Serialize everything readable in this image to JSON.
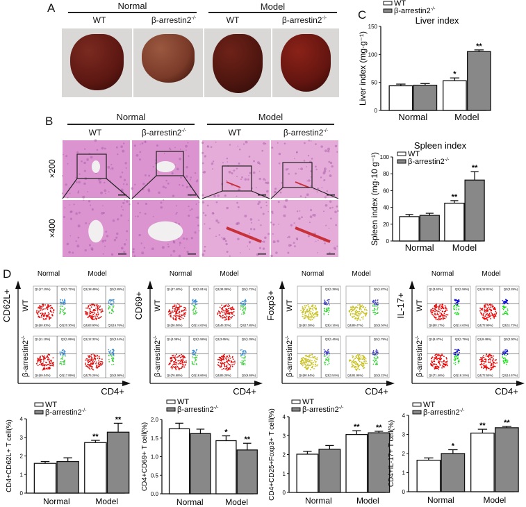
{
  "panel_labels": {
    "a": "A",
    "b": "B",
    "c": "C",
    "d": "D"
  },
  "groups": {
    "normal": "Normal",
    "model": "Model"
  },
  "genotypes": {
    "wt": "WT",
    "ko": "β-arrestin2",
    "ko_sup": "-/-"
  },
  "magnification": {
    "low": "×200",
    "high": "×400"
  },
  "colors": {
    "wt_bar": "#ffffff",
    "ko_bar": "#888888",
    "liver": "#6e1a14",
    "he_stain": "#e7a6d6"
  },
  "flow": {
    "x_axis": "CD4+",
    "panels": [
      {
        "marker": "CD62L+",
        "x_label": "CD4+",
        "plots": [
          {
            "q1": "Q1(17.15%)",
            "q2": "Q2(1.72%)",
            "q4": "Q4(60.83%)",
            "q3": "Q3(20.30%)"
          },
          {
            "q1": "Q1(18.49%)",
            "q2": "Q2(2.85%)",
            "q4": "Q4(63.90%)",
            "q3": "Q3(16.76%)"
          },
          {
            "q1": "Q1(11.10%)",
            "q2": "Q2(1.89%)",
            "q4": "Q4(69.04%)",
            "q3": "Q3(17.89%)"
          },
          {
            "q1": "Q1(12.32%)",
            "q2": "Q2(3.44%)",
            "q4": "Q4(75.26%)",
            "q3": "Q3(8.98%)"
          }
        ]
      },
      {
        "marker": "CD69+",
        "x_label": "CD4+",
        "plots": [
          {
            "q1": "Q1(47.40%)",
            "q2": "Q2(1.81%)",
            "q4": "Q4(36.06%)",
            "q3": "Q3(14.62%)"
          },
          {
            "q1": "Q1(34.08%)",
            "q2": "Q2(1.72%)",
            "q4": "Q4(46.33%)",
            "q3": "Q3(17.85%)"
          },
          {
            "q1": "Q1(4.08%)",
            "q2": "Q2(1.58%)",
            "q4": "Q4(76.68%)",
            "q3": "Q3(18.66%)"
          },
          {
            "q1": "Q1(3.65%)",
            "q2": "Q2(1.39%)",
            "q4": "Q4(85.28%)",
            "q3": "Q3(9.69%)"
          }
        ]
      },
      {
        "marker": "Foxp3+",
        "x_label": "CD4+",
        "plots": [
          {
            "q1": "",
            "q2": "Q2(1.38%)",
            "q4": "Q4(92.28%)",
            "q3": "Q3(4.16%)"
          },
          {
            "q1": "",
            "q2": "Q2(1.87%)",
            "q4": "Q4(89.47%)",
            "q3": "Q3(5.04%)"
          },
          {
            "q1": "",
            "q2": "Q2(1.46%)",
            "q4": "Q4(90.94%)",
            "q3": "Q3(3.54%)"
          },
          {
            "q1": "",
            "q2": "Q2(1.79%)",
            "q4": "Q4(91.96%)",
            "q3": "Q3(5.22%)"
          }
        ]
      },
      {
        "marker": "IL-17+",
        "x_label": "CD4+",
        "plots": [
          {
            "q1": "Q1(3.62%)",
            "q2": "Q2(1.58%)",
            "q4": "Q4(80.17%)",
            "q3": "Q3(14.63%)"
          },
          {
            "q1": "Q1(12.01%)",
            "q2": "Q2(3.28%)",
            "q4": "Q4(72.99%)",
            "q3": "Q3(11.72%)"
          },
          {
            "q1": "Q1(8.47%)",
            "q2": "Q2(1.79%)",
            "q4": "Q4(71.46%)",
            "q3": "Q3(18.34%)"
          },
          {
            "q1": "Q1(9.48%)",
            "q2": "Q2(3.30%)",
            "q4": "Q4(72.55%)",
            "q3": "Q3(14.67%)"
          }
        ]
      }
    ]
  },
  "chart_data": [
    {
      "type": "bar",
      "title": "Liver index",
      "ylabel": "Liver index (mg·g⁻¹)",
      "categories": [
        "Normal",
        "Model"
      ],
      "ylim": [
        0,
        150
      ],
      "yticks": [
        0,
        50,
        100,
        150
      ],
      "series": [
        {
          "name": "WT",
          "values": [
            44,
            53
          ],
          "errors": [
            3,
            5
          ]
        },
        {
          "name": "β-arrestin2-/-",
          "values": [
            45,
            105
          ],
          "errors": [
            3,
            3
          ]
        }
      ],
      "annotations": {
        "wt": [
          "",
          "*"
        ],
        "ko": [
          "",
          "**"
        ],
        "bracket": "##"
      },
      "legend": "top-left"
    },
    {
      "type": "bar",
      "title": "Spleen index",
      "ylabel": "Spleen index (mg·10 g⁻¹)",
      "categories": [
        "Normal",
        "Model"
      ],
      "ylim": [
        0,
        100
      ],
      "yticks": [
        0,
        20,
        40,
        60,
        80,
        100
      ],
      "series": [
        {
          "name": "WT",
          "values": [
            29,
            45
          ],
          "errors": [
            2.5,
            3
          ]
        },
        {
          "name": "β-arrestin2-/-",
          "values": [
            30.5,
            72.5
          ],
          "errors": [
            2.5,
            10
          ]
        }
      ],
      "annotations": {
        "wt": [
          "",
          "**"
        ],
        "ko": [
          "",
          "**"
        ],
        "bracket": "##"
      },
      "legend": "top-left"
    },
    {
      "type": "bar",
      "title": "",
      "ylabel": "CD4+CD62L+ T cell(%)",
      "categories": [
        "Normal",
        "Model"
      ],
      "ylim": [
        0,
        4
      ],
      "yticks": [
        0,
        1,
        2,
        3,
        4
      ],
      "series": [
        {
          "name": "WT",
          "values": [
            1.6,
            2.72
          ],
          "errors": [
            0.1,
            0.12
          ]
        },
        {
          "name": "β-arrestin2-/-",
          "values": [
            1.7,
            3.28
          ],
          "errors": [
            0.2,
            0.48
          ]
        }
      ],
      "annotations": {
        "wt": [
          "",
          "**"
        ],
        "ko": [
          "",
          "**"
        ],
        "bracket": "#"
      },
      "legend": "top-left"
    },
    {
      "type": "bar",
      "title": "",
      "ylabel": "CD4+CD69+ T cell(%)",
      "categories": [
        "Normal",
        "Model"
      ],
      "ylim": [
        0,
        2
      ],
      "yticks": [
        "0.0",
        "0.5",
        "1.0",
        "1.5",
        "2.0"
      ],
      "series": [
        {
          "name": "WT",
          "values": [
            1.75,
            1.43
          ],
          "errors": [
            0.15,
            0.13
          ]
        },
        {
          "name": "β-arrestin2-/-",
          "values": [
            1.62,
            1.18
          ],
          "errors": [
            0.12,
            0.18
          ]
        }
      ],
      "annotations": {
        "wt": [
          "",
          "*"
        ],
        "ko": [
          "",
          "**"
        ],
        "bracket": "#"
      },
      "legend": "top-left"
    },
    {
      "type": "bar",
      "title": "",
      "ylabel": "CD4+CD25+Foxp3+ T cell(%)",
      "categories": [
        "Normal",
        "Model"
      ],
      "ylim": [
        0,
        4
      ],
      "yticks": [
        0,
        1,
        2,
        3,
        4
      ],
      "series": [
        {
          "name": "WT",
          "values": [
            2.02,
            3.06
          ],
          "errors": [
            0.15,
            0.2
          ]
        },
        {
          "name": "β-arrestin2-/-",
          "values": [
            2.28,
            3.15
          ],
          "errors": [
            0.2,
            0.08
          ]
        }
      ],
      "annotations": {
        "wt": [
          "",
          "**"
        ],
        "ko": [
          "",
          "**"
        ],
        "bracket": ""
      },
      "legend": "top-left"
    },
    {
      "type": "bar",
      "title": "",
      "ylabel": "CD4+IL-17+ T cell(%)",
      "categories": [
        "Normal",
        "Model"
      ],
      "ylim": [
        0,
        4
      ],
      "yticks": [
        0,
        1,
        2,
        3,
        4
      ],
      "series": [
        {
          "name": "WT",
          "values": [
            1.65,
            3.07
          ],
          "errors": [
            0.12,
            0.2
          ]
        },
        {
          "name": "β-arrestin2-/-",
          "values": [
            2.0,
            3.35
          ],
          "errors": [
            0.2,
            0.07
          ]
        }
      ],
      "annotations": {
        "wt": [
          "",
          "**"
        ],
        "ko": [
          "*",
          "**"
        ],
        "bracket": ""
      },
      "legend": "top-left"
    }
  ]
}
